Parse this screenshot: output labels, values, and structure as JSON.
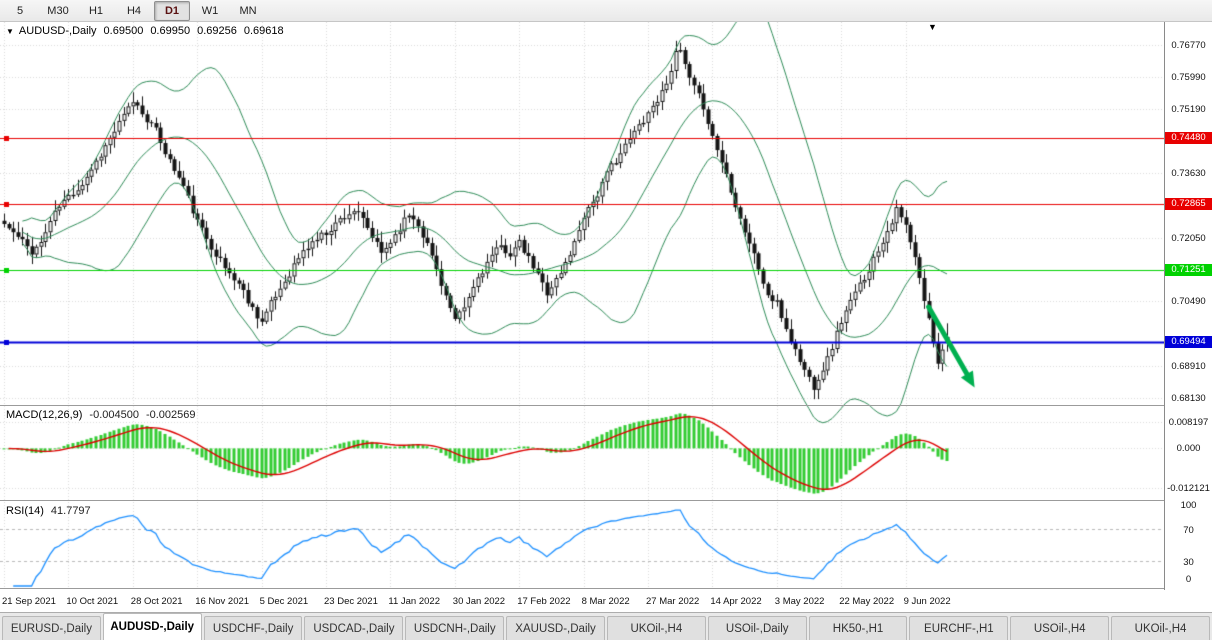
{
  "toolbar": {
    "timeframes": [
      "5",
      "M30",
      "H1",
      "H4",
      "D1",
      "W1",
      "MN"
    ],
    "active": "D1"
  },
  "chart": {
    "symbol": "AUDUSD-,Daily",
    "ohlc": {
      "open": "0.69500",
      "high": "0.69950",
      "low": "0.69256",
      "close": "0.69618"
    },
    "y_axis": {
      "min": 0.6795,
      "max": 0.7733,
      "labels": [
        {
          "text": "0.76770",
          "value": 0.7677
        },
        {
          "text": "0.75990",
          "value": 0.7599
        },
        {
          "text": "0.75190",
          "value": 0.7519
        },
        {
          "text": "0.73630",
          "value": 0.7363
        },
        {
          "text": "0.72050",
          "value": 0.7205
        },
        {
          "text": "0.70490",
          "value": 0.7049
        },
        {
          "text": "0.68910",
          "value": 0.6891
        },
        {
          "text": "0.68130",
          "value": 0.6813
        }
      ]
    },
    "levels": [
      {
        "label": "0.74480",
        "value": 0.7448,
        "color": "#e80000",
        "thickness": 1
      },
      {
        "label": "0.72865",
        "value": 0.72865,
        "color": "#e80000",
        "thickness": 1
      },
      {
        "label": "0.71251",
        "value": 0.71251,
        "color": "#00d200",
        "thickness": 1
      },
      {
        "label": "0.69494",
        "value": 0.69494,
        "color": "#0000d8",
        "thickness": 2
      }
    ]
  },
  "macd": {
    "title": "MACD(12,26,9)",
    "value_main": "-0.004500",
    "value_signal": "-0.002569",
    "axis_labels": [
      {
        "text": "0.008197",
        "value": 0.008197
      },
      {
        "text": "0.000",
        "value": 0
      },
      {
        "text": "-0.012121",
        "value": -0.012121
      }
    ],
    "colors": {
      "histogram": "#33cc33",
      "signal": "#dd0000"
    }
  },
  "rsi": {
    "title": "RSI(14)",
    "value": "41.7797",
    "axis_labels": [
      {
        "text": "100",
        "value": 100
      },
      {
        "text": "70",
        "value": 70
      },
      {
        "text": "30",
        "value": 30
      },
      {
        "text": "0",
        "value": 0
      }
    ],
    "dashed_levels": [
      70,
      30
    ],
    "color": "#1e90ff"
  },
  "x_axis": {
    "dates": [
      {
        "text": "21 Sep 2021",
        "bar": 0
      },
      {
        "text": "10 Oct 2021",
        "bar": 14
      },
      {
        "text": "28 Oct 2021",
        "bar": 28
      },
      {
        "text": "16 Nov 2021",
        "bar": 42
      },
      {
        "text": "5 Dec 2021",
        "bar": 56
      },
      {
        "text": "23 Dec 2021",
        "bar": 70
      },
      {
        "text": "11 Jan 2022",
        "bar": 84
      },
      {
        "text": "30 Jan 2022",
        "bar": 98
      },
      {
        "text": "17 Feb 2022",
        "bar": 112
      },
      {
        "text": "8 Mar 2022",
        "bar": 126
      },
      {
        "text": "27 Mar 2022",
        "bar": 140
      },
      {
        "text": "14 Apr 2022",
        "bar": 154
      },
      {
        "text": "3 May 2022",
        "bar": 168
      },
      {
        "text": "22 May 2022",
        "bar": 182
      },
      {
        "text": "9 Jun 2022",
        "bar": 196
      }
    ]
  },
  "tabs": {
    "items": [
      {
        "label": "EURUSD-,Daily",
        "active": false
      },
      {
        "label": "AUDUSD-,Daily",
        "active": true
      },
      {
        "label": "USDCHF-,Daily",
        "active": false
      },
      {
        "label": "USDCAD-,Daily",
        "active": false
      },
      {
        "label": "USDCNH-,Daily",
        "active": false
      },
      {
        "label": "XAUUSD-,Daily",
        "active": false
      },
      {
        "label": "UKOil-,H4",
        "active": false
      },
      {
        "label": "USOil-,Daily",
        "active": false
      },
      {
        "label": "HK50-,H1",
        "active": false
      },
      {
        "label": "EURCHF-,H1",
        "active": false
      },
      {
        "label": "USOil-,H4",
        "active": false
      },
      {
        "label": "UKOil-,H4",
        "active": false
      }
    ]
  },
  "icons": {
    "symbol_dropdown": "▼",
    "chart_shift": "▼"
  },
  "chart_data": {
    "type": "candlestick",
    "symbol": "AUDUSD-",
    "timeframe": "Daily",
    "bars_total": 206,
    "close_keypoints": [
      [
        0,
        0.7238
      ],
      [
        3,
        0.7205
      ],
      [
        6,
        0.7172
      ],
      [
        8,
        0.7192
      ],
      [
        10,
        0.7246
      ],
      [
        12,
        0.7282
      ],
      [
        14,
        0.7306
      ],
      [
        17,
        0.7338
      ],
      [
        20,
        0.7392
      ],
      [
        23,
        0.7448
      ],
      [
        26,
        0.7502
      ],
      [
        28,
        0.754
      ],
      [
        30,
        0.7512
      ],
      [
        33,
        0.7465
      ],
      [
        36,
        0.7392
      ],
      [
        39,
        0.733
      ],
      [
        42,
        0.7242
      ],
      [
        45,
        0.7185
      ],
      [
        48,
        0.713
      ],
      [
        51,
        0.7092
      ],
      [
        54,
        0.7032
      ],
      [
        56,
        0.7
      ],
      [
        58,
        0.7042
      ],
      [
        61,
        0.71
      ],
      [
        64,
        0.7156
      ],
      [
        67,
        0.7195
      ],
      [
        70,
        0.7218
      ],
      [
        73,
        0.725
      ],
      [
        76,
        0.7272
      ],
      [
        78,
        0.7246
      ],
      [
        80,
        0.7206
      ],
      [
        82,
        0.7166
      ],
      [
        84,
        0.7196
      ],
      [
        86,
        0.723
      ],
      [
        88,
        0.7263
      ],
      [
        90,
        0.724
      ],
      [
        93,
        0.716
      ],
      [
        96,
        0.7062
      ],
      [
        98,
        0.6998
      ],
      [
        100,
        0.7032
      ],
      [
        103,
        0.7108
      ],
      [
        106,
        0.716
      ],
      [
        108,
        0.7182
      ],
      [
        110,
        0.7166
      ],
      [
        112,
        0.719
      ],
      [
        115,
        0.7132
      ],
      [
        118,
        0.7072
      ],
      [
        121,
        0.7118
      ],
      [
        124,
        0.7192
      ],
      [
        126,
        0.7262
      ],
      [
        129,
        0.7312
      ],
      [
        132,
        0.7382
      ],
      [
        135,
        0.7428
      ],
      [
        138,
        0.748
      ],
      [
        140,
        0.7512
      ],
      [
        143,
        0.756
      ],
      [
        146,
        0.7652
      ],
      [
        147,
        0.7662
      ],
      [
        149,
        0.759
      ],
      [
        152,
        0.7528
      ],
      [
        154,
        0.7452
      ],
      [
        157,
        0.736
      ],
      [
        160,
        0.7252
      ],
      [
        163,
        0.7162
      ],
      [
        166,
        0.7062
      ],
      [
        168,
        0.7042
      ],
      [
        171,
        0.6952
      ],
      [
        174,
        0.688
      ],
      [
        176,
        0.6842
      ],
      [
        179,
        0.6908
      ],
      [
        182,
        0.7002
      ],
      [
        185,
        0.7068
      ],
      [
        188,
        0.713
      ],
      [
        191,
        0.72
      ],
      [
        194,
        0.7272
      ],
      [
        196,
        0.7232
      ],
      [
        198,
        0.7152
      ],
      [
        200,
        0.7052
      ],
      [
        202,
        0.6952
      ],
      [
        203,
        0.6902
      ],
      [
        204,
        0.6938
      ],
      [
        205,
        0.6962
      ]
    ],
    "last_bar_ohlc": [
      0.695,
      0.6995,
      0.69256,
      0.69618
    ],
    "indicators": [
      {
        "name": "Bollinger Bands",
        "period": 20,
        "deviation": 2,
        "color": "#2e8b57"
      },
      {
        "name": "MACD",
        "fast": 12,
        "slow": 26,
        "signal": 9
      },
      {
        "name": "RSI",
        "period": 14
      }
    ],
    "horizontal_levels": [
      0.7448,
      0.72865,
      0.71251,
      0.69494
    ],
    "annotations": [
      {
        "type": "arrow",
        "color": "#00b050",
        "from": {
          "bar": 201,
          "price": 0.7035
        },
        "to": {
          "bar": 211,
          "price": 0.6838
        }
      }
    ],
    "noise_seed": 11,
    "candle_colors": {
      "up": "#ffffff",
      "down": "#151515",
      "outline": "#151515"
    }
  }
}
